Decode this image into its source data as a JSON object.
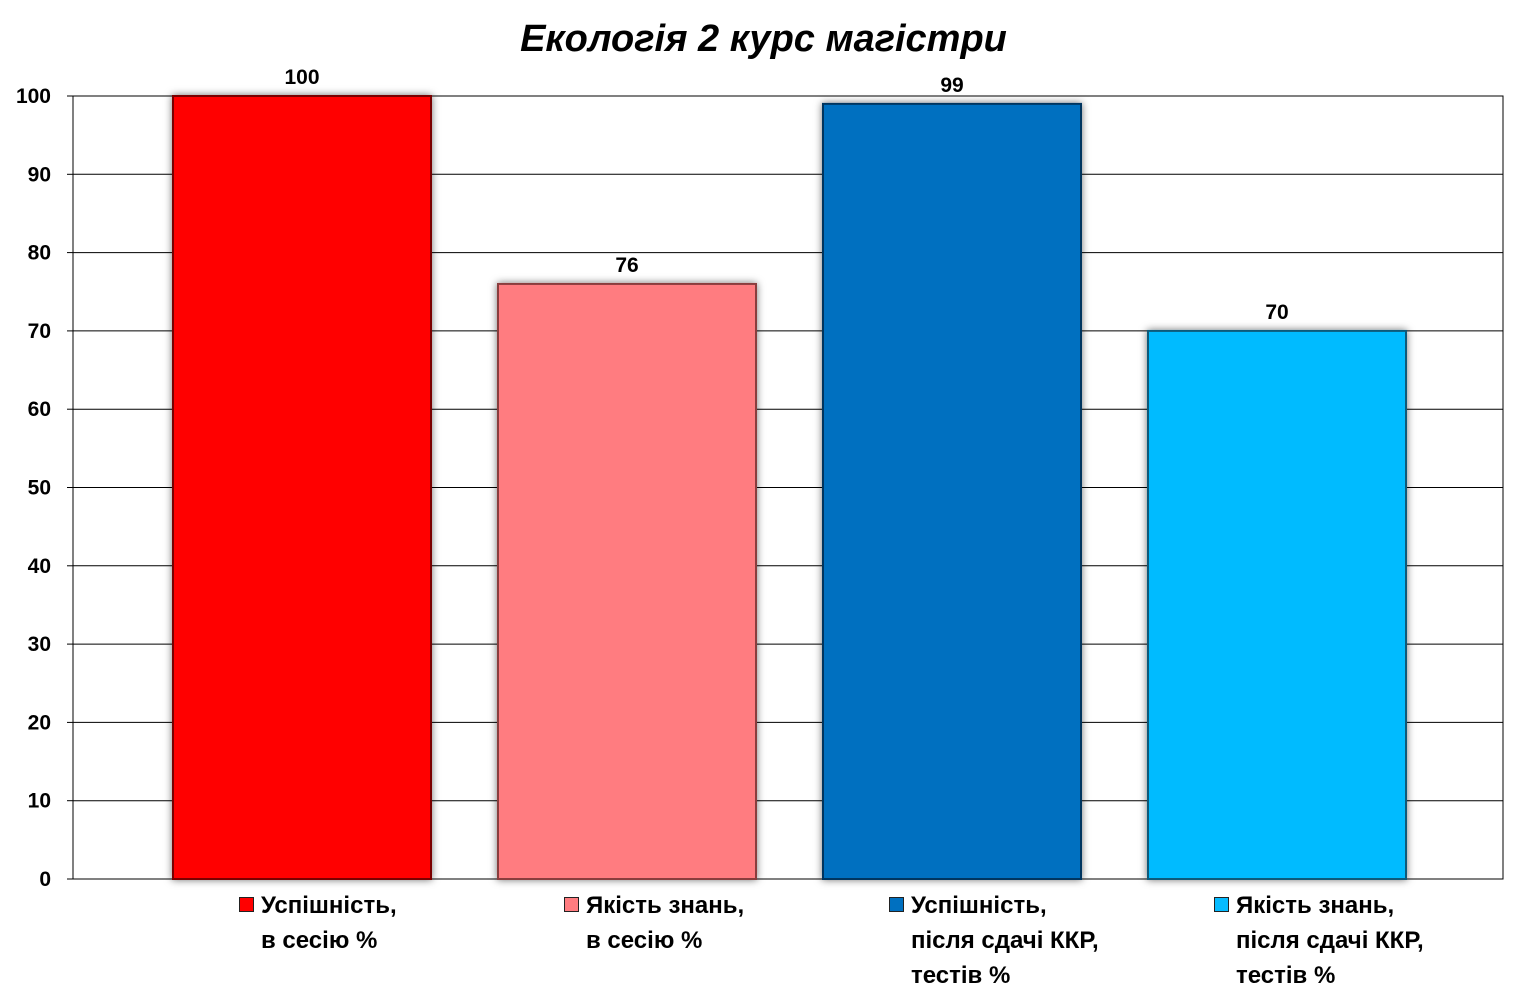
{
  "chart_data": {
    "type": "bar",
    "title": "Екологія 2 курс магістри",
    "xlabel": "",
    "ylabel": "",
    "ylim": [
      0,
      100
    ],
    "yticks": [
      0,
      10,
      20,
      30,
      40,
      50,
      60,
      70,
      80,
      90,
      100
    ],
    "grid": true,
    "legend_position": "bottom",
    "series": [
      {
        "name": "Успішність,\nв сесію %",
        "value": 100,
        "label": "100",
        "color": "#ff0000",
        "border": "#7a0000"
      },
      {
        "name": "Якість знань,\nв сесію %",
        "value": 76,
        "label": "76",
        "color": "#ff7c80",
        "border": "#8a3c3e"
      },
      {
        "name": "Успішність,\nпісля сдачі ККР,\nтестів %",
        "value": 99,
        "label": "99",
        "color": "#0070c0",
        "border": "#00355e"
      },
      {
        "name": "Якість знань,\nпісля сдачі ККР,\nтестів %",
        "value": 70,
        "label": "70",
        "color": "#06bbff",
        "border": "#0a5a7a"
      }
    ]
  }
}
